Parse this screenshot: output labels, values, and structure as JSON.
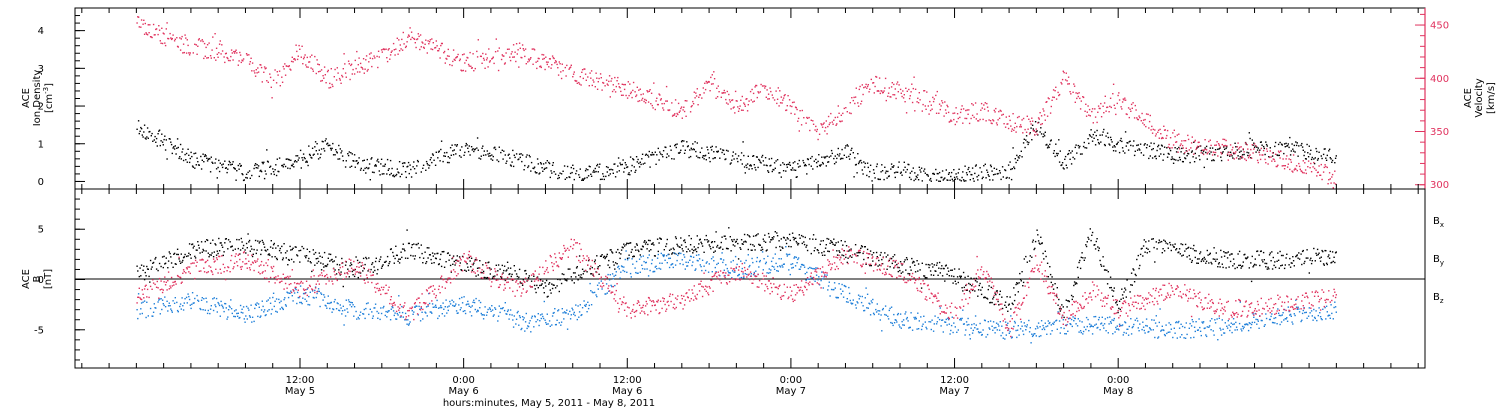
{
  "chart_data": [
    {
      "type": "scatter",
      "panel": "top",
      "left_axis": {
        "title_lines": [
          "ACE",
          "Ion Density"
        ],
        "unit": "[cm",
        "unit_superscript": "-3",
        "unit_close": "]",
        "ylim": [
          -0.2,
          4.6
        ],
        "ticks": [
          0,
          1,
          2,
          3,
          4
        ],
        "tick_labels": [
          "0",
          "1",
          "2",
          "3",
          "4"
        ]
      },
      "right_axis": {
        "title_lines": [
          "ACE",
          "Velocity",
          "[km/s]"
        ],
        "ylim": [
          296,
          466
        ],
        "ticks": [
          300,
          350,
          400,
          450
        ],
        "tick_labels": [
          "300",
          "350",
          "400",
          "450"
        ],
        "color": "#e0325e"
      },
      "series": [
        {
          "axis": "left",
          "color": "#000000",
          "x": [
            0,
            4,
            8,
            12,
            14,
            16,
            20,
            24,
            28,
            32,
            36,
            40,
            44,
            48,
            52,
            54,
            56,
            58,
            60,
            64,
            66,
            68,
            70,
            72,
            76,
            80,
            84,
            88
          ],
          "y": [
            1.5,
            0.6,
            0.25,
            0.5,
            1.0,
            0.5,
            0.3,
            0.9,
            0.6,
            0.15,
            0.4,
            0.9,
            0.6,
            0.3,
            0.8,
            0.2,
            0.35,
            0.1,
            0.2,
            0.3,
            1.5,
            0.5,
            1.2,
            1.0,
            0.7,
            0.8,
            0.9,
            0.7
          ]
        },
        {
          "axis": "right",
          "color": "#e0325e",
          "x": [
            0,
            2,
            4,
            8,
            10,
            12,
            14,
            18,
            20,
            24,
            28,
            32,
            36,
            40,
            42,
            44,
            46,
            48,
            50,
            54,
            58,
            60,
            62,
            64,
            66,
            68,
            70,
            72,
            76,
            80,
            84,
            88
          ],
          "y": [
            455,
            440,
            430,
            420,
            395,
            425,
            400,
            420,
            440,
            415,
            425,
            405,
            390,
            370,
            395,
            375,
            390,
            375,
            350,
            395,
            380,
            365,
            370,
            360,
            355,
            400,
            365,
            380,
            340,
            335,
            325,
            305
          ]
        }
      ]
    },
    {
      "type": "scatter",
      "panel": "bottom",
      "left_axis": {
        "title_lines": [
          "ACE",
          "B"
        ],
        "unit": "[nT]",
        "ylim": [
          -8.8,
          9.0
        ],
        "ticks": [
          -5,
          0,
          5
        ],
        "tick_labels": [
          "-5",
          "0",
          "5"
        ]
      },
      "legend": "right",
      "series": [
        {
          "name": "B",
          "subscript": "x",
          "color": "#000000",
          "x": [
            0,
            4,
            8,
            12,
            16,
            20,
            24,
            28,
            30,
            32,
            36,
            40,
            44,
            48,
            52,
            56,
            60,
            64,
            66,
            68,
            70,
            72,
            74,
            76,
            80,
            84,
            88
          ],
          "y": [
            0.5,
            3.0,
            3.5,
            2.5,
            1.0,
            3.0,
            1.5,
            0.5,
            -1.0,
            0.5,
            3.0,
            3.5,
            3.8,
            3.8,
            3.0,
            1.5,
            0.5,
            -2.5,
            4.5,
            -3.5,
            5.0,
            -3.0,
            3.5,
            3.0,
            2.0,
            2.0,
            2.5
          ]
        },
        {
          "name": "B",
          "subscript": "y",
          "color": "#1e7fd9",
          "x": [
            0,
            4,
            8,
            12,
            16,
            20,
            24,
            28,
            32,
            36,
            40,
            44,
            48,
            52,
            56,
            60,
            64,
            68,
            72,
            76,
            80,
            84,
            88
          ],
          "y": [
            -3.0,
            -2.0,
            -3.5,
            -1.5,
            -3.0,
            -3.5,
            -2.5,
            -4.0,
            -3.5,
            1.5,
            2.0,
            1.0,
            2.0,
            -1.5,
            -4.0,
            -4.5,
            -5.0,
            -4.5,
            -4.5,
            -5.0,
            -4.5,
            -3.5,
            -3.0
          ]
        },
        {
          "name": "B",
          "subscript": "z",
          "color": "#e0325e",
          "x": [
            0,
            4,
            8,
            12,
            16,
            20,
            24,
            28,
            32,
            36,
            40,
            44,
            48,
            52,
            56,
            60,
            62,
            64,
            66,
            68,
            70,
            72,
            76,
            80,
            84,
            88
          ],
          "y": [
            -1.5,
            1.0,
            2.0,
            -1.0,
            1.5,
            -3.5,
            2.0,
            -1.0,
            3.5,
            -3.0,
            -2.0,
            1.0,
            -1.5,
            2.5,
            1.0,
            -3.5,
            1.5,
            -5.0,
            2.0,
            -4.0,
            -1.0,
            -3.0,
            -1.0,
            -3.0,
            -2.5,
            -1.5
          ]
        }
      ]
    }
  ],
  "x_axis": {
    "time_labels": [
      {
        "x": 12,
        "time": "12:00",
        "date": "May 5"
      },
      {
        "x": 24,
        "time": "0:00",
        "date": "May 6"
      },
      {
        "x": 36,
        "time": "12:00",
        "date": "May 6"
      },
      {
        "x": 48,
        "time": "0:00",
        "date": "May 7"
      },
      {
        "x": 60,
        "time": "12:00",
        "date": "May 7"
      },
      {
        "x": 72,
        "time": "0:00",
        "date": "May 8"
      }
    ],
    "xlim": [
      -4.5,
      94.5
    ],
    "minor_step_hours": 2,
    "footer": "hours:minutes, May  5, 2011 - May  8, 2011"
  },
  "colors": {
    "black": "#000000",
    "pink": "#e0325e",
    "blue": "#1e7fd9"
  }
}
